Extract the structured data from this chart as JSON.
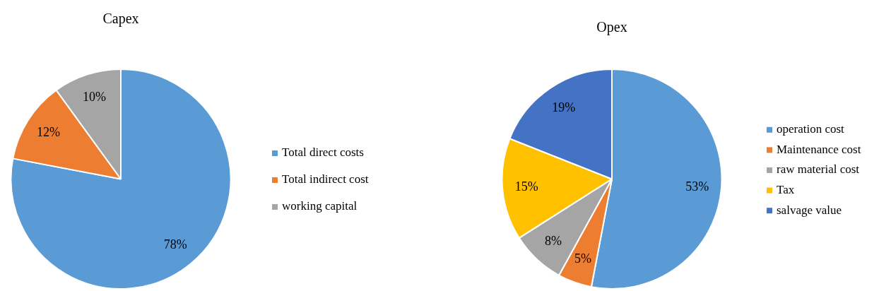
{
  "chart_data": [
    {
      "type": "pie",
      "title": "Capex",
      "categories": [
        "Total direct costs",
        "Total indirect cost",
        "working capital"
      ],
      "values": [
        78,
        12,
        10
      ],
      "colors": [
        "#5b9bd5",
        "#ed7d31",
        "#a5a5a5"
      ],
      "value_labels": [
        "78%",
        "12%",
        "10%"
      ],
      "legend": "right"
    },
    {
      "type": "pie",
      "title": "Opex",
      "categories": [
        "operation cost",
        "Maintenance cost",
        "raw material cost",
        "Tax",
        "salvage value"
      ],
      "values": [
        53,
        5,
        8,
        15,
        19
      ],
      "colors": [
        "#5b9bd5",
        "#ed7d31",
        "#a5a5a5",
        "#ffc000",
        "#4472c4"
      ],
      "value_labels": [
        "53%",
        "5%",
        "8%",
        "15%",
        "19%"
      ],
      "legend": "right"
    }
  ]
}
